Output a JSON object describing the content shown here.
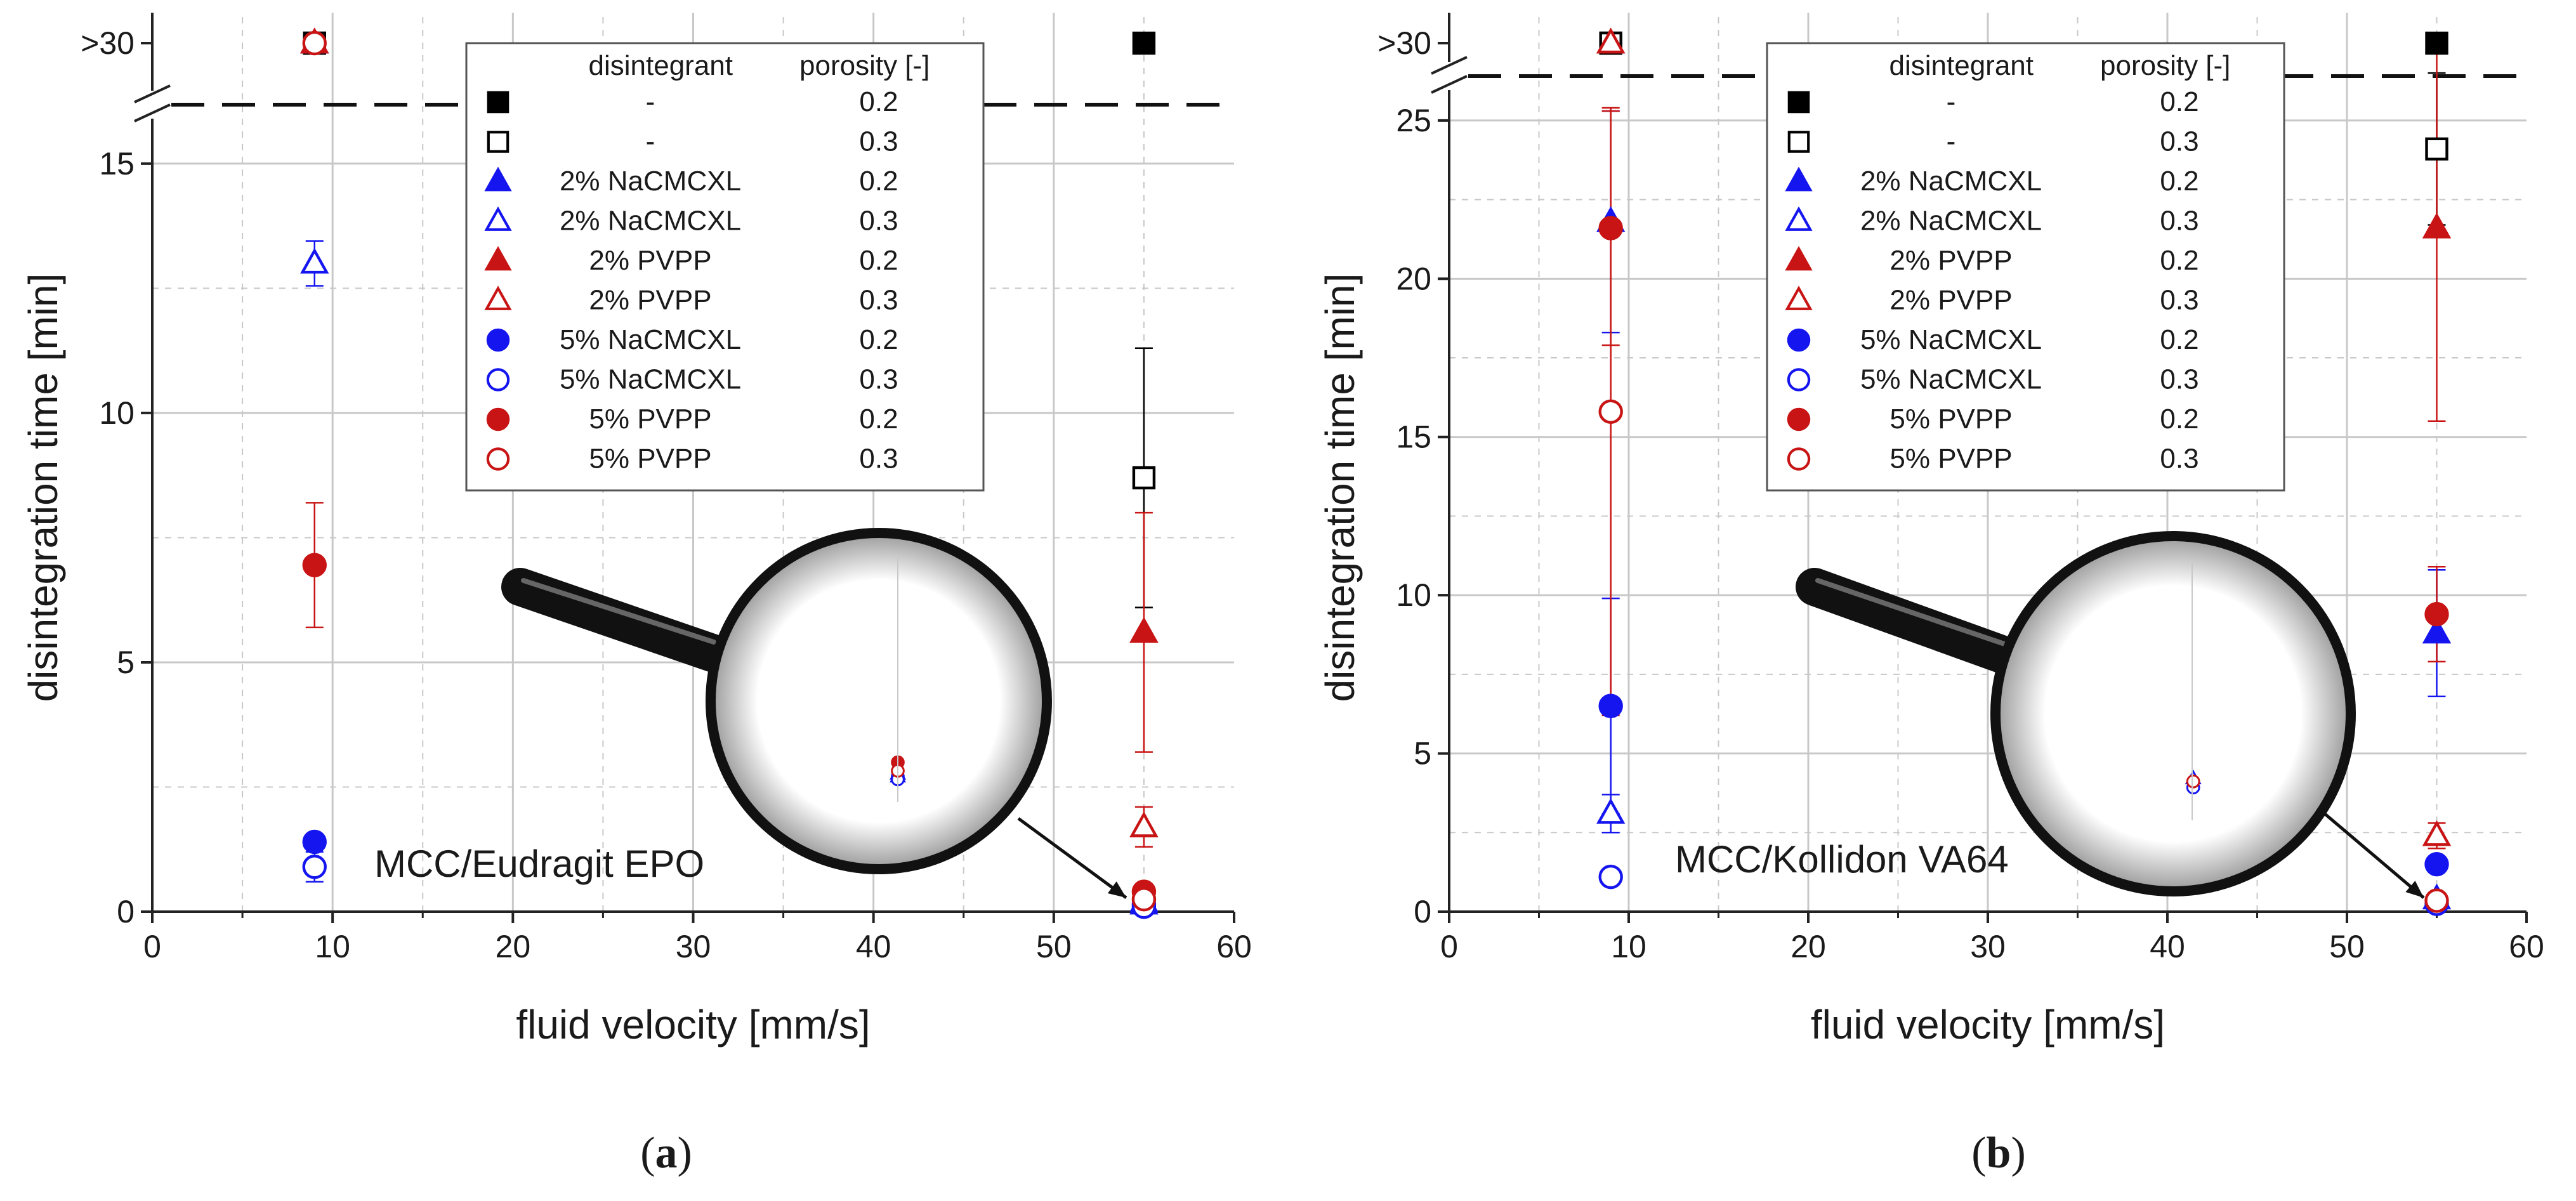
{
  "colors": {
    "black": "#000000",
    "blue": "#1515f0",
    "red": "#c81414",
    "grid": "#c8c8c8"
  },
  "legend": {
    "header_disintegrant": "disintegrant",
    "header_porosity": "porosity [-]",
    "items": [
      {
        "symbol": "square-filled",
        "color": "#000000",
        "label": "-",
        "porosity": "0.2"
      },
      {
        "symbol": "square-open",
        "color": "#000000",
        "label": "-",
        "porosity": "0.3"
      },
      {
        "symbol": "triangle-filled",
        "color": "#1515f0",
        "label": "2% NaCMCXL",
        "porosity": "0.2"
      },
      {
        "symbol": "triangle-open",
        "color": "#1515f0",
        "label": "2% NaCMCXL",
        "porosity": "0.3"
      },
      {
        "symbol": "triangle-filled",
        "color": "#c81414",
        "label": "2% PVPP",
        "porosity": "0.2"
      },
      {
        "symbol": "triangle-open",
        "color": "#c81414",
        "label": "2% PVPP",
        "porosity": "0.3"
      },
      {
        "symbol": "circle-filled",
        "color": "#1515f0",
        "label": "5% NaCMCXL",
        "porosity": "0.2"
      },
      {
        "symbol": "circle-open",
        "color": "#1515f0",
        "label": "5% NaCMCXL",
        "porosity": "0.3"
      },
      {
        "symbol": "circle-filled",
        "color": "#c81414",
        "label": "5% PVPP",
        "porosity": "0.2"
      },
      {
        "symbol": "circle-open",
        "color": "#c81414",
        "label": "5% PVPP",
        "porosity": "0.3"
      }
    ]
  },
  "chart_data": [
    {
      "type": "scatter",
      "panel_label": "a",
      "annotation": "MCC/Eudragit EPO",
      "xlabel": "fluid velocity [mm/s]",
      "ylabel": "disintegration time [min]",
      "xlim": [
        0,
        60
      ],
      "ylim": [
        0,
        15.8
      ],
      "x_ticks": [
        "0",
        "10",
        "20",
        "30",
        "40",
        "50",
        "60"
      ],
      "y_ticks": [
        "0",
        "5",
        "10",
        "15"
      ],
      "y_break_label": ">30",
      "grid": true,
      "legend_position": "top-center",
      "magnifier": "inset enlarging the points at 55 mm/s",
      "series": [
        {
          "marker": "square-filled",
          "color": "#000000",
          "points": [
            {
              "x": 9,
              "y": ">30"
            },
            {
              "x": 55,
              "y": ">30"
            }
          ]
        },
        {
          "marker": "square-open",
          "color": "#000000",
          "points": [
            {
              "x": 9,
              "y": ">30"
            },
            {
              "x": 55,
              "y": 8.7,
              "err": 2.6
            }
          ]
        },
        {
          "marker": "triangle-filled",
          "color": "#1515f0",
          "points": [
            {
              "x": 9,
              "y": ">30"
            },
            {
              "x": 55,
              "y": 0.2
            }
          ]
        },
        {
          "marker": "triangle-open",
          "color": "#1515f0",
          "points": [
            {
              "x": 9,
              "y": 13.0,
              "err": 0.45
            },
            {
              "x": 55,
              "y": 0.15
            }
          ]
        },
        {
          "marker": "triangle-filled",
          "color": "#c81414",
          "points": [
            {
              "x": 9,
              "y": ">30"
            },
            {
              "x": 55,
              "y": 5.6,
              "err": 2.4
            }
          ]
        },
        {
          "marker": "triangle-open",
          "color": "#c81414",
          "points": [
            {
              "x": 9,
              "y": ">30"
            },
            {
              "x": 55,
              "y": 1.7,
              "err": 0.4
            }
          ]
        },
        {
          "marker": "circle-filled",
          "color": "#1515f0",
          "points": [
            {
              "x": 9,
              "y": 1.4
            },
            {
              "x": 55,
              "y": 0.15
            }
          ]
        },
        {
          "marker": "circle-open",
          "color": "#1515f0",
          "points": [
            {
              "x": 9,
              "y": 0.9,
              "err": 0.3
            },
            {
              "x": 55,
              "y": 0.1
            }
          ]
        },
        {
          "marker": "circle-filled",
          "color": "#c81414",
          "points": [
            {
              "x": 9,
              "y": 6.95,
              "err": 1.25
            },
            {
              "x": 55,
              "y": 0.4
            }
          ]
        },
        {
          "marker": "circle-open",
          "color": "#c81414",
          "points": [
            {
              "x": 9,
              "y": ">30"
            },
            {
              "x": 55,
              "y": 0.25
            }
          ]
        }
      ]
    },
    {
      "type": "scatter",
      "panel_label": "b",
      "annotation": "MCC/Kollidon VA64",
      "xlabel": "fluid velocity [mm/s]",
      "ylabel": "disintegration time [min]",
      "xlim": [
        0,
        60
      ],
      "ylim": [
        0,
        25.8
      ],
      "x_ticks": [
        "0",
        "10",
        "20",
        "30",
        "40",
        "50",
        "60"
      ],
      "y_ticks": [
        "0",
        "5",
        "10",
        "15",
        "20",
        "25"
      ],
      "y_break_label": ">30",
      "grid": true,
      "legend_position": "top-center",
      "magnifier": "inset enlarging the points at 55 mm/s",
      "series": [
        {
          "marker": "square-filled",
          "color": "#000000",
          "points": [
            {
              "x": 9,
              "y": ">30"
            },
            {
              "x": 55,
              "y": ">30"
            }
          ]
        },
        {
          "marker": "square-open",
          "color": "#000000",
          "points": [
            {
              "x": 9,
              "y": ">30"
            },
            {
              "x": 55,
              "y": 24.1,
              "err": 2.4
            }
          ]
        },
        {
          "marker": "triangle-filled",
          "color": "#1515f0",
          "points": [
            {
              "x": 9,
              "y": 21.8,
              "err": 3.5
            },
            {
              "x": 55,
              "y": 8.8,
              "err": 2.0
            }
          ]
        },
        {
          "marker": "triangle-open",
          "color": "#1515f0",
          "points": [
            {
              "x": 9,
              "y": 3.1,
              "err": 0.6
            },
            {
              "x": 55,
              "y": 0.4
            }
          ]
        },
        {
          "marker": "triangle-filled",
          "color": "#c81414",
          "points": [
            {
              "x": 9,
              "y": ">30"
            },
            {
              "x": 55,
              "y": 21.6,
              "err": 6.1
            }
          ]
        },
        {
          "marker": "triangle-open",
          "color": "#c81414",
          "points": [
            {
              "x": 9,
              "y": ">30"
            },
            {
              "x": 55,
              "y": 2.4,
              "err": 0.4
            }
          ]
        },
        {
          "marker": "circle-filled",
          "color": "#1515f0",
          "points": [
            {
              "x": 9,
              "y": 6.5,
              "err": 3.4
            },
            {
              "x": 55,
              "y": 1.5
            }
          ]
        },
        {
          "marker": "circle-open",
          "color": "#1515f0",
          "points": [
            {
              "x": 9,
              "y": 1.1
            },
            {
              "x": 55,
              "y": 0.25
            }
          ]
        },
        {
          "marker": "circle-filled",
          "color": "#c81414",
          "points": [
            {
              "x": 9,
              "y": 21.6,
              "err": 3.7
            },
            {
              "x": 55,
              "y": 9.4,
              "err": 1.5
            }
          ]
        },
        {
          "marker": "circle-open",
          "color": "#c81414",
          "points": [
            {
              "x": 9,
              "y": 15.8,
              "err": 9.6
            },
            {
              "x": 55,
              "y": 0.35
            }
          ]
        }
      ]
    }
  ]
}
